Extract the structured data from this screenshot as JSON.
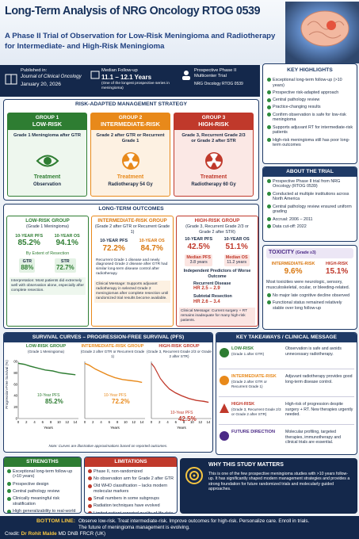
{
  "header": {
    "title": "Long-Term Analysis of NRG Oncology RTOG 0539",
    "subtitle": "A Phase II Trial of Observation for Low-Risk Meningioma and Radiotherapy for Intermediate- and High-Risk Meningioma"
  },
  "info": {
    "published_label": "Published in:",
    "journal": "Journal of Clinical Oncology",
    "date": "January 20, 2026",
    "followup_label": "Median Follow-up",
    "followup_value": "11.1 – 12.1 Years",
    "followup_note": "(One of the longest prospective series in meningioma)",
    "trial_type": "Prospective Phase II Multicenter Trial",
    "trial_name": "NRG Oncology RTOG 0539"
  },
  "highlights": {
    "title": "KEY HIGHLIGHTS",
    "items": [
      "Exceptional long-term follow-up (>10 years)",
      "Prospective risk-adapted approach",
      "Central pathology review",
      "Practice-changing results",
      "Confirm observation is safe for low-risk meningioma",
      "Supports adjuvant RT for intermediate-risk patients",
      "High-risk meningioma still has poor long-term outcomes"
    ]
  },
  "strategy": {
    "title": "RISK-ADAPTED MANAGEMENT STRATEGY",
    "groups": [
      {
        "group": "GROUP 1",
        "risk": "LOW-RISK",
        "criteria": "Grade 1 Meningioma after GTR",
        "treatment_label": "Treatment",
        "treatment": "Observation"
      },
      {
        "group": "GROUP 2",
        "risk": "INTERMEDIATE-RISK",
        "criteria": "Grade 2 after GTR or Recurrent Grade 1",
        "treatment_label": "Treatment",
        "treatment": "Radiotherapy 54 Gy"
      },
      {
        "group": "GROUP 3",
        "risk": "HIGH-RISK",
        "criteria": "Grade 3, Recurrent Grade 2/3 or Grade 2 after STR",
        "treatment_label": "Treatment",
        "treatment": "Radiotherapy 60 Gy"
      }
    ]
  },
  "about": {
    "title": "ABOUT THE TRIAL",
    "items": [
      "Prospective Phase II trial from NRG Oncology (RTOG 0539)",
      "Conducted at multiple institutions across North America",
      "Central pathology review ensured uniform grading",
      "Accrual: 2006 – 2011",
      "Data cut-off: 2022"
    ]
  },
  "outcomes": {
    "title": "LONG-TERM OUTCOMES",
    "low": {
      "name": "LOW-RISK GROUP",
      "sub": "(Grade 1 Meningioma)",
      "pfs_label": "10-YEAR PFS",
      "pfs": "85.2%",
      "os_label": "10-YEAR OS",
      "os": "94.1%",
      "resection_label": "By Extent of Resection",
      "gtr_label": "GTR",
      "gtr": "88%",
      "str_label": "STR",
      "str": "72.7%",
      "interpretation": "Interpretation: Most patients did extremely well with observation alone, especially after complete resection."
    },
    "intermediate": {
      "name": "INTERMEDIATE-RISK GROUP",
      "sub": "(Grade 2 after GTR or Recurrent Grade 1)",
      "pfs_label": "10-YEAR PFS",
      "pfs": "72.2%",
      "os_label": "10-YEAR OS",
      "os": "84.7%",
      "note": "Recurrent Grade 1 disease and newly diagnosed Grade 2 disease after GTR had similar long-term disease control after radiotherapy.",
      "message": "Clinical Message: Supports adjuvant radiotherapy in selected Grade 2 meningiomas after complete resection until randomized trial results become available."
    },
    "high": {
      "name": "HIGH-RISK GROUP",
      "sub": "(Grade 3, Recurrent Grade 2/3 or Grade 2 after STR)",
      "pfs_label": "10-YEAR PFS",
      "pfs": "42.5%",
      "os_label": "10-YEAR OS",
      "os": "51.1%",
      "mpfs_label": "Median PFS",
      "mpfs": "3.8 years",
      "mos_label": "Median OS",
      "mos": "11.2 years",
      "predictors_label": "Independent Predictors of Worse Outcome",
      "pred1_label": "Recurrent Disease",
      "pred1": "HR 2.5 – 2.9",
      "pred2_label": "Subtotal Resection",
      "pred2": "HR 2.6 – 3.4",
      "message": "Clinical Message: Current surgery + RT remains inadequate for many high-risk patients."
    }
  },
  "toxicity": {
    "title": "TOXICITY",
    "grade": "(Grade ≥3)",
    "int_label": "INTERMEDIATE-RISK",
    "int": "9.6%",
    "high_label": "HIGH-RISK",
    "high": "15.1%",
    "note": "Most toxicities were neurologic, sensory, musculoskeletal, ocular, or bleeding-related.",
    "items": [
      "No major late cognitive decline observed",
      "Functional status remained relatively stable over long follow-up"
    ]
  },
  "curves": {
    "title": "SURVIVAL CURVES – PROGRESSION-FREE SURVIVAL (PFS)",
    "y_label": "Progression-Free Survival (%)",
    "x_label": "Years",
    "note": "Note: Curves are illustrative approximations based on reported outcomes.",
    "x_ticks": [
      "0",
      "2",
      "4",
      "6",
      "8",
      "10",
      "12",
      "14"
    ],
    "y_ticks": [
      "0",
      "20",
      "40",
      "60",
      "80",
      "100"
    ],
    "panels": [
      {
        "name": "LOW-RISK GROUP",
        "sub": "(Grade 1 Meningioma)",
        "pfs_label": "10-Year PFS",
        "pfs": "85.2%"
      },
      {
        "name": "INTERMEDIATE-RISK GROUP",
        "sub": "(Grade 2 after GTR or Recurrent Grade 1)",
        "pfs_label": "10-Year PFS",
        "pfs": "72.2%"
      },
      {
        "name": "HIGH-RISK GROUP",
        "sub": "(Grade 3, Recurrent Grade 2/3 or Grade 2 after STR)",
        "pfs_label": "10-Year PFS",
        "pfs": "42.5%"
      }
    ]
  },
  "takeaways": {
    "title": "KEY TAKEAWAYS / CLINICAL MESSAGE",
    "rows": [
      {
        "group": "LOW-RISK",
        "sub": "(Grade 1 after GTR)",
        "text": "Observation is safe and avoids unnecessary radiotherapy."
      },
      {
        "group": "INTERMEDIATE-RISK",
        "sub": "(Grade 2 after GTR or Recurrent Grade 1)",
        "text": "Adjuvant radiotherapy provides good long-term disease control."
      },
      {
        "group": "HIGH-RISK",
        "sub": "(Grade 3, Recurrent Grade 2/3 or Grade 2 after STR)",
        "text": "High-risk of progression despite surgery + RT. New therapies urgently needed."
      },
      {
        "group": "FUTURE DIRECTION",
        "sub": null,
        "text": "Molecular profiling, targeted therapies, immunotherapy and clinical trials are essential."
      }
    ]
  },
  "strengths": {
    "title": "STRENGTHS",
    "items": [
      "Exceptional long-term follow-up (>10 years)",
      "Prospective design",
      "Central pathology review",
      "Clinically meaningful risk stratification",
      "High generalizability to real-world practice"
    ]
  },
  "limitations": {
    "title": "LIMITATIONS",
    "items": [
      "Phase II, non-randomized",
      "No observation arm for Grade 2 after GTR",
      "Old WHO classification – lacks modern molecular markers",
      "Small numbers in some subgroups",
      "Radiation techniques have evolved",
      "Limited patient-reported quality of life data"
    ]
  },
  "why": {
    "title": "WHY THIS STUDY MATTERS",
    "text": "This is one of the few prospective meningioma studies with >10 years follow-up. It has significantly shaped modern management strategies and provides a strong foundation for future randomized trials and molecularly guided approaches."
  },
  "footer": {
    "label": "BOTTOM LINE:",
    "text": "Observe low-risk. Treat intermediate-risk. Improve outcomes for high-risk. Personalize care. Enroll in trials. The future of meningioma management is evolving.",
    "credit_label": "Credit:",
    "credit_name": "Dr Rohit Malde",
    "credit_degrees": "MD DNB FRCR (UK)"
  }
}
